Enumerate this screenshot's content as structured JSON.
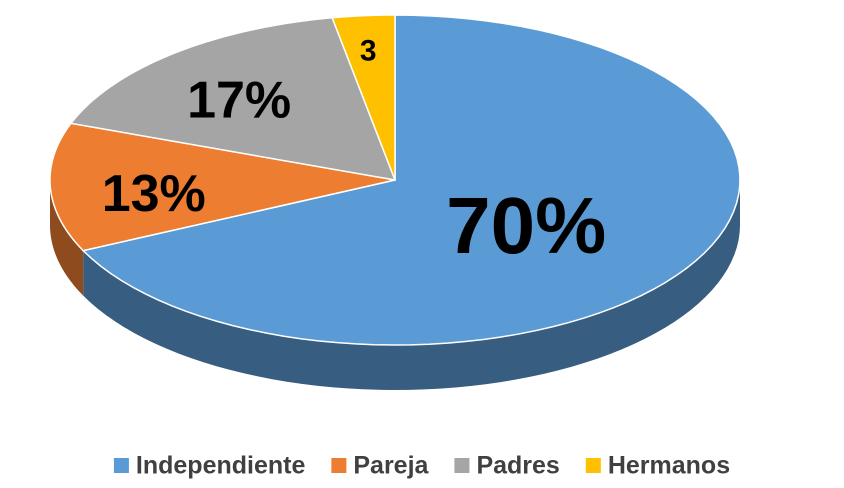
{
  "chart_data": {
    "type": "pie",
    "categories": [
      "Independiente",
      "Pareja",
      "Padres",
      "Hermanos"
    ],
    "values": [
      70,
      13,
      17,
      3
    ],
    "value_labels": [
      "70%",
      "13%",
      "17%",
      "3"
    ],
    "colors": [
      "#5b9bd5",
      "#ed7d31",
      "#a5a5a5",
      "#ffc000"
    ],
    "legend": "bottom"
  }
}
